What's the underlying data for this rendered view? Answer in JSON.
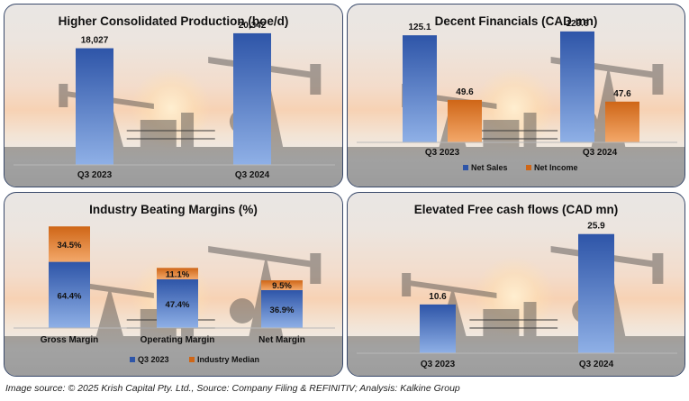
{
  "colors": {
    "blue_light": "#8fb0e6",
    "blue_dark": "#2e55a8",
    "orange_light": "#f3a86a",
    "orange_dark": "#cf6617",
    "silhouette": "#3b3b3b"
  },
  "chart_data": [
    {
      "type": "bar",
      "title": "Higher Consolidated Production (boe/d)",
      "categories": [
        "Q3 2023",
        "Q3 2024"
      ],
      "series": [
        {
          "values": [
            18027,
            20342
          ]
        }
      ],
      "data_labels": [
        "18,027",
        "20,342"
      ],
      "ylim": [
        0,
        22000
      ],
      "legend": "none"
    },
    {
      "type": "bar",
      "title": "Decent Financials (CAD mn)",
      "categories": [
        "Q3 2023",
        "Q3 2024"
      ],
      "series": [
        {
          "name": "Net Sales",
          "values": [
            125.1,
            129.6
          ],
          "labels": [
            "125.1",
            "129.6"
          ]
        },
        {
          "name": "Net Income",
          "values": [
            49.6,
            47.6
          ],
          "labels": [
            "49.6",
            "47.6"
          ]
        }
      ],
      "ylim": [
        0,
        140
      ],
      "legend": "bottom"
    },
    {
      "type": "bar",
      "stacked": true,
      "title": "Industry Beating Margins (%)",
      "categories": [
        "Gross Margin",
        "Operating Margin",
        "Net Margin"
      ],
      "series": [
        {
          "name": "Q3 2023",
          "values": [
            64.4,
            47.4,
            36.9
          ],
          "labels": [
            "64.4%",
            "47.4%",
            "36.9%"
          ]
        },
        {
          "name": "Industry Median",
          "values": [
            34.5,
            11.1,
            9.5
          ],
          "labels": [
            "34.5%",
            "11.1%",
            "9.5%"
          ]
        }
      ],
      "ylim": [
        0,
        100
      ],
      "legend": "bottom"
    },
    {
      "type": "bar",
      "title": "Elevated Free cash flows (CAD mn)",
      "categories": [
        "Q3 2023",
        "Q3 2024"
      ],
      "series": [
        {
          "values": [
            10.6,
            25.9
          ]
        }
      ],
      "data_labels": [
        "10.6",
        "25.9"
      ],
      "ylim": [
        0,
        28
      ],
      "legend": "none"
    }
  ],
  "footer": "Image source: © 2025 Krish Capital Pty. Ltd., Source: Company Filing & REFINITIV; Analysis: Kalkine Group"
}
